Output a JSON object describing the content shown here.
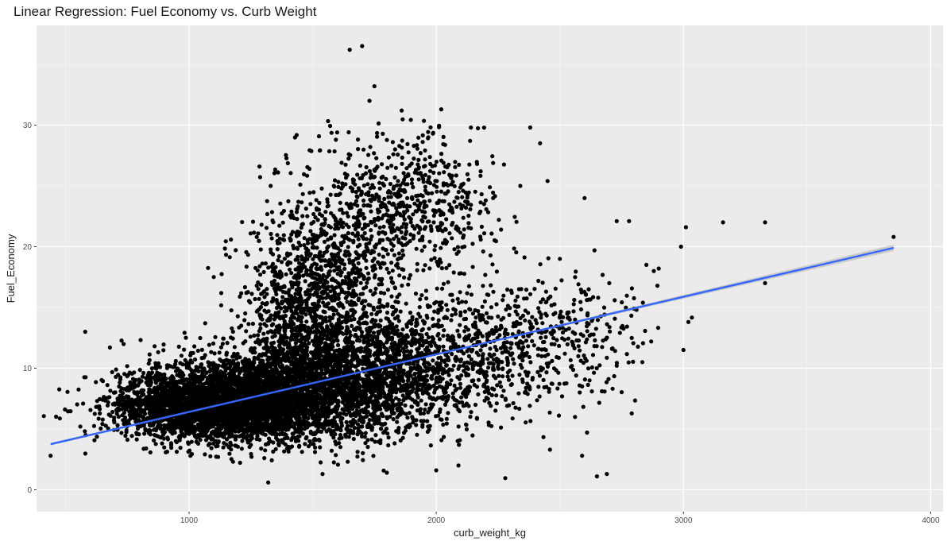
{
  "chart_data": {
    "type": "scatter",
    "title": "Linear Regression: Fuel Economy vs. Curb Weight",
    "xlabel": "curb_weight_kg",
    "ylabel": "Fuel_Economy",
    "xlim": [
      383,
      4050
    ],
    "ylim": [
      -1.8,
      38.2
    ],
    "x_ticks": [
      1000,
      2000,
      3000,
      4000
    ],
    "y_ticks": [
      0,
      10,
      20,
      30
    ],
    "grid": true,
    "legend": "none",
    "regression_line": {
      "x": [
        440,
        3850
      ],
      "y": [
        3.75,
        19.9
      ],
      "color": "#3366ff",
      "confidence_band": true
    },
    "point_clouds": [
      {
        "x_mean": 1050,
        "x_sd": 180,
        "y_mean": 6.8,
        "y_sd": 1.3,
        "count": 1800
      },
      {
        "x_mean": 1250,
        "x_sd": 230,
        "y_mean": 7.3,
        "y_sd": 1.7,
        "count": 2200
      },
      {
        "x_mean": 1500,
        "x_sd": 280,
        "y_mean": 8.5,
        "y_sd": 2.1,
        "count": 1700
      },
      {
        "x_mean": 1800,
        "x_sd": 260,
        "y_mean": 10.5,
        "y_sd": 2.6,
        "count": 1100
      },
      {
        "x_mean": 2200,
        "x_sd": 280,
        "y_mean": 11.5,
        "y_sd": 2.6,
        "count": 450
      },
      {
        "x_mean": 2500,
        "x_sd": 160,
        "y_mean": 13.5,
        "y_sd": 2.3,
        "count": 160
      },
      {
        "x_mean": 1560,
        "x_sd": 140,
        "y_mean": 18.5,
        "y_sd": 3.5,
        "count": 700
      },
      {
        "x_mean": 1900,
        "x_sd": 180,
        "y_mean": 23.5,
        "y_sd": 3.0,
        "count": 600
      },
      {
        "x_mean": 1450,
        "x_sd": 120,
        "y_mean": 14.0,
        "y_sd": 3.0,
        "count": 500
      }
    ],
    "points": [
      {
        "x": 440,
        "y": 2.8
      },
      {
        "x": 580,
        "y": 13.0
      },
      {
        "x": 560,
        "y": 5.2
      },
      {
        "x": 680,
        "y": 11.7
      },
      {
        "x": 1100,
        "y": 17.5
      },
      {
        "x": 1320,
        "y": 0.6
      },
      {
        "x": 1330,
        "y": 25.0
      },
      {
        "x": 1650,
        "y": 36.2
      },
      {
        "x": 1700,
        "y": 36.5
      },
      {
        "x": 1750,
        "y": 33.2
      },
      {
        "x": 1730,
        "y": 32.0
      },
      {
        "x": 1860,
        "y": 31.2
      },
      {
        "x": 2020,
        "y": 31.3
      },
      {
        "x": 2140,
        "y": 29.8
      },
      {
        "x": 2380,
        "y": 29.8
      },
      {
        "x": 2420,
        "y": 28.5
      },
      {
        "x": 2450,
        "y": 25.4
      },
      {
        "x": 2600,
        "y": 24.0
      },
      {
        "x": 2730,
        "y": 22.1
      },
      {
        "x": 2780,
        "y": 22.1
      },
      {
        "x": 2990,
        "y": 20.0
      },
      {
        "x": 3010,
        "y": 21.6
      },
      {
        "x": 3020,
        "y": 13.8
      },
      {
        "x": 3000,
        "y": 11.5
      },
      {
        "x": 3160,
        "y": 22.0
      },
      {
        "x": 3330,
        "y": 22.0
      },
      {
        "x": 3330,
        "y": 17.0
      },
      {
        "x": 3850,
        "y": 20.8
      },
      {
        "x": 2650,
        "y": 1.1
      },
      {
        "x": 2690,
        "y": 1.3
      },
      {
        "x": 2610,
        "y": 4.7
      },
      {
        "x": 2590,
        "y": 2.8
      },
      {
        "x": 1540,
        "y": 1.3
      },
      {
        "x": 2000,
        "y": 1.6
      },
      {
        "x": 1800,
        "y": 1.4
      },
      {
        "x": 2090,
        "y": 2.0
      },
      {
        "x": 2460,
        "y": 3.3
      },
      {
        "x": 2730,
        "y": 10.2
      },
      {
        "x": 2850,
        "y": 18.5
      },
      {
        "x": 2880,
        "y": 18.0
      },
      {
        "x": 2900,
        "y": 18.2
      },
      {
        "x": 2810,
        "y": 14.8
      },
      {
        "x": 2700,
        "y": 17.0
      },
      {
        "x": 2640,
        "y": 19.7
      },
      {
        "x": 2670,
        "y": 8.1
      },
      {
        "x": 2590,
        "y": 8.5
      },
      {
        "x": 2540,
        "y": 14.0
      },
      {
        "x": 2340,
        "y": 25.0
      },
      {
        "x": 2180,
        "y": 26.2
      },
      {
        "x": 2230,
        "y": 24.0
      },
      {
        "x": 2200,
        "y": 23.8
      }
    ],
    "point_color": "#000000"
  }
}
